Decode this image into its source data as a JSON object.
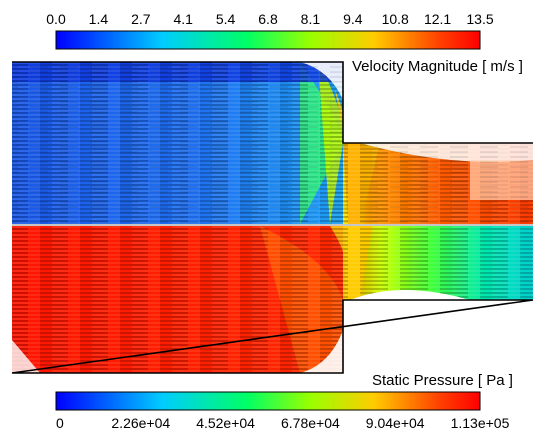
{
  "velocity_legend": {
    "title": "Velocity Magnitude [ m/s ]",
    "ticks": [
      "0.0",
      "1.4",
      "2.7",
      "4.1",
      "5.4",
      "6.8",
      "8.1",
      "9.4",
      "10.8",
      "12.1",
      "13.5"
    ],
    "range": [
      0.0,
      13.5
    ]
  },
  "pressure_legend": {
    "title": "Static Pressure [ Pa ]",
    "ticks": [
      "0",
      "2.26e+04",
      "4.52e+04",
      "6.78e+04",
      "9.04e+04",
      "1.13e+05"
    ],
    "range": [
      0,
      113000
    ]
  },
  "colormap": [
    "#0000ff",
    "#0066ff",
    "#00ccff",
    "#00ffcc",
    "#00ff33",
    "#66ff00",
    "#ccff00",
    "#ffcc00",
    "#ff6600",
    "#ff0000"
  ],
  "colors": {
    "wall": "#000000",
    "recirculation": "#ffffff",
    "pressure_field": "#ff2200"
  }
}
